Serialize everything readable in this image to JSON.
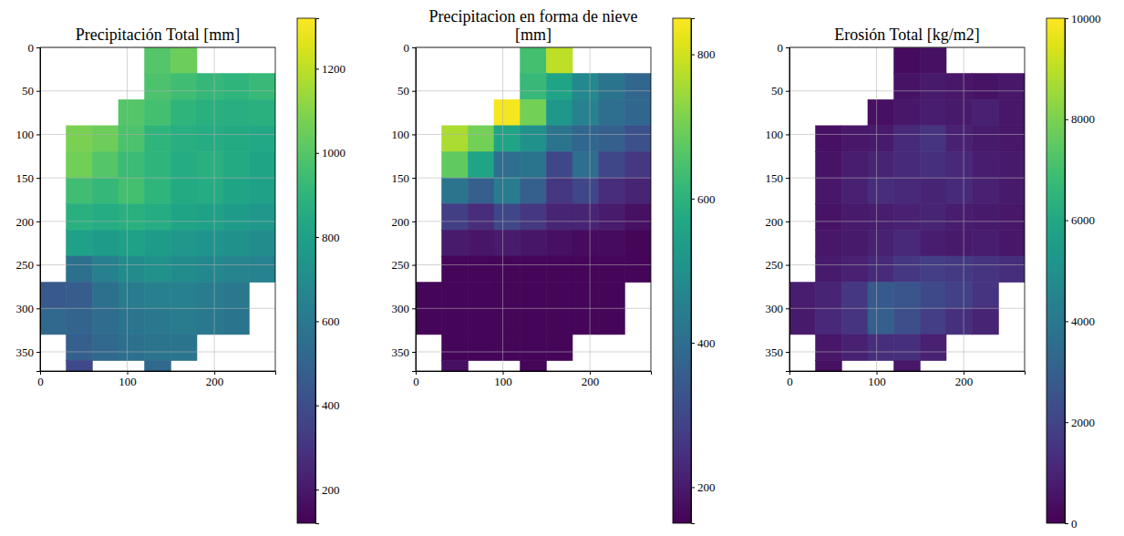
{
  "chart_data": [
    {
      "type": "heatmap",
      "title": "Precipitación Total [mm]",
      "color": "viridis",
      "grid": true,
      "xlim": [
        0,
        270
      ],
      "ylim": [
        372,
        0
      ],
      "xticks": [
        0,
        100,
        200
      ],
      "yticks": [
        0,
        50,
        100,
        150,
        200,
        250,
        300,
        350
      ],
      "x_edges": [
        0,
        30,
        60,
        90,
        120,
        150,
        180,
        210,
        240,
        270
      ],
      "y_edges": [
        0,
        30,
        60,
        90,
        120,
        150,
        180,
        210,
        240,
        270,
        300,
        330,
        360,
        372
      ],
      "cells": [
        [
          null,
          null,
          null,
          null,
          1000,
          1050,
          null,
          null,
          null
        ],
        [
          null,
          null,
          null,
          null,
          980,
          950,
          920,
          900,
          930
        ],
        [
          null,
          null,
          null,
          1000,
          960,
          900,
          880,
          870,
          880
        ],
        [
          null,
          1080,
          1050,
          980,
          900,
          870,
          860,
          850,
          840
        ],
        [
          null,
          1060,
          1000,
          940,
          900,
          860,
          880,
          850,
          820
        ],
        [
          null,
          950,
          920,
          960,
          900,
          850,
          860,
          820,
          800
        ],
        [
          null,
          880,
          860,
          880,
          860,
          820,
          800,
          780,
          760
        ],
        [
          null,
          800,
          780,
          800,
          780,
          760,
          740,
          720,
          700
        ],
        [
          null,
          560,
          640,
          700,
          720,
          700,
          680,
          660,
          650
        ],
        [
          450,
          470,
          560,
          620,
          640,
          640,
          620,
          600,
          null
        ],
        [
          520,
          500,
          540,
          580,
          600,
          620,
          600,
          580,
          null
        ],
        [
          null,
          480,
          520,
          560,
          580,
          580,
          null,
          null,
          null
        ],
        [
          null,
          380,
          null,
          null,
          520,
          null,
          null,
          null,
          null
        ]
      ],
      "colorbar": {
        "range": [
          120,
          1320
        ],
        "ticks": [
          200,
          400,
          600,
          800,
          1000,
          1200
        ]
      }
    },
    {
      "type": "heatmap",
      "title": "Precipitacion en forma de nieve [mm]",
      "color": "viridis",
      "grid": true,
      "xlim": [
        0,
        270
      ],
      "ylim": [
        372,
        0
      ],
      "xticks": [
        0,
        100,
        200
      ],
      "yticks": [
        0,
        50,
        100,
        150,
        200,
        250,
        300,
        350
      ],
      "x_edges": [
        0,
        30,
        60,
        90,
        120,
        150,
        180,
        210,
        240,
        270
      ],
      "y_edges": [
        0,
        30,
        60,
        90,
        120,
        150,
        180,
        210,
        240,
        270,
        300,
        330,
        360,
        372
      ],
      "cells": [
        [
          null,
          null,
          null,
          null,
          640,
          780,
          null,
          null,
          null
        ],
        [
          null,
          null,
          null,
          null,
          620,
          560,
          480,
          420,
          380
        ],
        [
          null,
          null,
          null,
          840,
          700,
          520,
          460,
          400,
          380
        ],
        [
          null,
          760,
          700,
          560,
          500,
          420,
          380,
          360,
          320
        ],
        [
          null,
          680,
          560,
          400,
          420,
          300,
          400,
          300,
          260
        ],
        [
          null,
          420,
          360,
          440,
          360,
          260,
          300,
          240,
          220
        ],
        [
          null,
          280,
          240,
          300,
          260,
          220,
          220,
          200,
          180
        ],
        [
          null,
          200,
          190,
          200,
          190,
          180,
          170,
          170,
          160
        ],
        [
          null,
          160,
          160,
          160,
          160,
          160,
          160,
          160,
          160
        ],
        [
          160,
          160,
          160,
          160,
          160,
          160,
          160,
          160,
          null
        ],
        [
          160,
          160,
          160,
          160,
          160,
          160,
          160,
          160,
          null
        ],
        [
          null,
          160,
          160,
          160,
          160,
          160,
          null,
          null,
          null
        ],
        [
          null,
          180,
          null,
          null,
          160,
          null,
          null,
          null,
          null
        ]
      ],
      "colorbar": {
        "range": [
          150,
          850
        ],
        "ticks": [
          200,
          400,
          600,
          800
        ]
      }
    },
    {
      "type": "heatmap",
      "title": "Erosión Total [kg/m2]",
      "color": "viridis",
      "grid": true,
      "xlim": [
        0,
        270
      ],
      "ylim": [
        372,
        0
      ],
      "xticks": [
        0,
        100,
        200
      ],
      "yticks": [
        0,
        50,
        100,
        150,
        200,
        250,
        300,
        350
      ],
      "x_edges": [
        0,
        30,
        60,
        90,
        120,
        150,
        180,
        210,
        240,
        270
      ],
      "y_edges": [
        0,
        30,
        60,
        90,
        120,
        150,
        180,
        210,
        240,
        270,
        300,
        330,
        360,
        372
      ],
      "cells": [
        [
          null,
          null,
          null,
          null,
          300,
          400,
          null,
          null,
          null
        ],
        [
          null,
          null,
          null,
          null,
          500,
          700,
          600,
          500,
          600
        ],
        [
          null,
          null,
          null,
          400,
          600,
          800,
          700,
          900,
          600
        ],
        [
          null,
          400,
          600,
          700,
          1200,
          1500,
          900,
          700,
          600
        ],
        [
          null,
          500,
          800,
          1000,
          1200,
          1400,
          1100,
          800,
          700
        ],
        [
          null,
          600,
          900,
          1300,
          1100,
          1000,
          1200,
          900,
          700
        ],
        [
          null,
          500,
          700,
          800,
          900,
          1000,
          800,
          700,
          600
        ],
        [
          null,
          600,
          700,
          900,
          1100,
          800,
          700,
          800,
          600
        ],
        [
          null,
          700,
          900,
          1200,
          1600,
          1800,
          1700,
          1500,
          1300
        ],
        [
          800,
          1000,
          1600,
          2800,
          2600,
          2200,
          1900,
          1500,
          null
        ],
        [
          700,
          1100,
          1500,
          3000,
          2400,
          1800,
          1400,
          1000,
          null
        ],
        [
          null,
          600,
          900,
          1300,
          1400,
          900,
          null,
          null,
          null
        ],
        [
          null,
          400,
          null,
          null,
          600,
          null,
          null,
          null,
          null
        ]
      ],
      "colorbar": {
        "range": [
          0,
          10000
        ],
        "ticks": [
          0,
          2000,
          4000,
          6000,
          8000,
          10000
        ]
      }
    }
  ]
}
